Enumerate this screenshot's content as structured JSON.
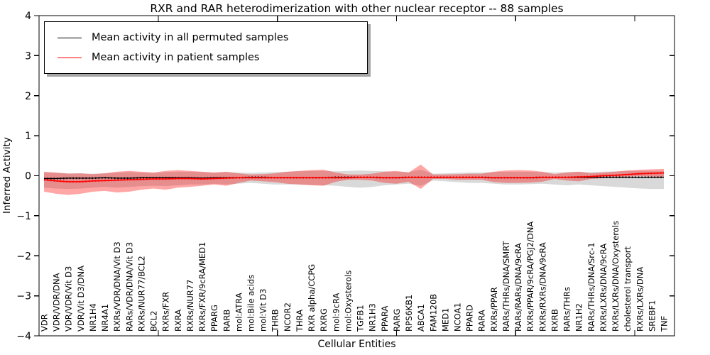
{
  "figure": {
    "title": "RXR and RAR heterodimerization with other nuclear receptor -- 88 samples",
    "background": "#ffffff"
  },
  "axes": {
    "ylabel": "Inferred Activity",
    "xlabel": "Cellular Entities",
    "ytick_labels": [
      "4",
      "3",
      "2",
      "1",
      "0",
      "−1",
      "−2",
      "−3",
      "−4"
    ],
    "ytick_values": [
      4,
      3,
      2,
      1,
      0,
      -1,
      -2,
      -3,
      -4
    ]
  },
  "legend": {
    "items": [
      {
        "label": "Mean activity in all permuted samples",
        "color": "#000000"
      },
      {
        "label": "Mean activity in patient samples",
        "color": "#ff0000"
      }
    ]
  },
  "chart_data": {
    "type": "line",
    "title": "RXR and RAR heterodimerization with other nuclear receptor -- 88 samples",
    "xlabel": "Cellular Entities",
    "ylabel": "Inferred Activity",
    "ylim": [
      -4,
      4
    ],
    "grid": false,
    "legend_position": "upper left",
    "categories": [
      "VDR",
      "VDR/VDR/DNA",
      "VDR/VDR/Vit D3",
      "VDR/Vit D3/DNA",
      "NR1H4",
      "NR4A1",
      "RXRs/VDR/DNA/Vit D3",
      "RARs/VDR/DNA/Vit D3",
      "RXRs/NUR77/BCL2",
      "BCL2",
      "RXRs/FXR",
      "RXRA",
      "RXRs/NUR77",
      "RXRs/FXR/9cRA/MED1",
      "PPARG",
      "RARB",
      "mol:ATRA",
      "mol:Bile acids",
      "mol:Vit D3",
      "THRB",
      "NCOR2",
      "THRA",
      "RXR alpha/CCPG",
      "RXRG",
      "mol:9cRA",
      "mol:Oxysterols",
      "TGFB1",
      "NR1H3",
      "PPARA",
      "RARG",
      "RPS6KB1",
      "ABCA1",
      "FAM120B",
      "MED1",
      "NCOA1",
      "PPARD",
      "RARA",
      "RXRs/PPAR",
      "RARs/THRs/DNA/SMRT",
      "RARs/RARs/DNA/9cRA",
      "RXRs/PPAR/9cRA/PGJ2/DNA",
      "RXRs/RXRs/DNA/9cRA",
      "RXRB",
      "RARs/THRs",
      "NR1H2",
      "RARs/THRs/DNA/Src-1",
      "RXRs/LXRs/DNA/9cRA",
      "RXRs/LXRs/DNA/Oxysterols",
      "cholesterol transport",
      "RXRs/LXRs/DNA",
      "SREBF1",
      "TNF"
    ],
    "xtick_index_positions": [
      9.4,
      19.2,
      29.0,
      38.8,
      48.6
    ],
    "series": [
      {
        "name": "Mean activity in all permuted samples",
        "color": "#000000",
        "band_color": "rgba(0,0,0,0.15)",
        "values": [
          -0.07,
          -0.07,
          -0.06,
          -0.06,
          -0.06,
          -0.05,
          -0.06,
          -0.06,
          -0.05,
          -0.05,
          -0.05,
          -0.05,
          -0.05,
          -0.06,
          -0.05,
          -0.05,
          -0.05,
          -0.04,
          -0.04,
          -0.05,
          -0.05,
          -0.05,
          -0.05,
          -0.05,
          -0.04,
          -0.04,
          -0.04,
          -0.04,
          -0.05,
          -0.05,
          -0.04,
          -0.04,
          -0.04,
          -0.04,
          -0.04,
          -0.04,
          -0.04,
          -0.05,
          -0.05,
          -0.05,
          -0.05,
          -0.04,
          -0.04,
          -0.04,
          -0.04,
          -0.04,
          -0.04,
          -0.04,
          -0.04,
          -0.04,
          -0.04,
          -0.04
        ],
        "band_upper": [
          0.08,
          0.07,
          0.06,
          0.06,
          0.05,
          0.06,
          0.08,
          0.09,
          0.08,
          0.07,
          0.09,
          0.1,
          0.1,
          0.09,
          0.08,
          0.09,
          0.08,
          0.07,
          0.08,
          0.09,
          0.1,
          0.11,
          0.12,
          0.12,
          0.11,
          0.12,
          0.13,
          0.12,
          0.11,
          0.1,
          0.09,
          0.15,
          0.05,
          0.06,
          0.07,
          0.08,
          0.08,
          0.09,
          0.1,
          0.1,
          0.1,
          0.09,
          0.08,
          0.09,
          0.1,
          0.09,
          0.1,
          0.11,
          0.12,
          0.12,
          0.12,
          0.12
        ],
        "band_lower": [
          -0.3,
          -0.32,
          -0.33,
          -0.32,
          -0.3,
          -0.28,
          -0.3,
          -0.28,
          -0.26,
          -0.25,
          -0.26,
          -0.24,
          -0.22,
          -0.22,
          -0.2,
          -0.22,
          -0.2,
          -0.18,
          -0.2,
          -0.22,
          -0.22,
          -0.22,
          -0.23,
          -0.24,
          -0.25,
          -0.28,
          -0.3,
          -0.28,
          -0.24,
          -0.22,
          -0.2,
          -0.25,
          -0.12,
          -0.14,
          -0.16,
          -0.18,
          -0.18,
          -0.2,
          -0.22,
          -0.22,
          -0.21,
          -0.2,
          -0.22,
          -0.24,
          -0.22,
          -0.24,
          -0.26,
          -0.28,
          -0.3,
          -0.32,
          -0.33,
          -0.33
        ]
      },
      {
        "name": "Mean activity in patient samples",
        "color": "#ff0000",
        "band_color": "rgba(255,0,0,0.35)",
        "values": [
          -0.1,
          -0.13,
          -0.15,
          -0.15,
          -0.13,
          -0.12,
          -0.11,
          -0.1,
          -0.09,
          -0.08,
          -0.08,
          -0.07,
          -0.07,
          -0.08,
          -0.07,
          -0.06,
          -0.05,
          -0.05,
          -0.05,
          -0.05,
          -0.05,
          -0.05,
          -0.05,
          -0.05,
          -0.05,
          -0.05,
          -0.04,
          -0.04,
          -0.05,
          -0.05,
          -0.04,
          -0.04,
          -0.04,
          -0.04,
          -0.04,
          -0.04,
          -0.04,
          -0.05,
          -0.05,
          -0.05,
          -0.05,
          -0.04,
          -0.04,
          -0.04,
          -0.03,
          -0.02,
          0.0,
          0.01,
          0.03,
          0.05,
          0.06,
          0.07
        ],
        "band_upper": [
          0.1,
          0.08,
          0.05,
          0.06,
          0.04,
          0.06,
          0.1,
          0.12,
          0.1,
          0.08,
          0.12,
          0.14,
          0.12,
          0.1,
          0.08,
          0.1,
          0.06,
          0.03,
          0.04,
          0.06,
          0.1,
          0.12,
          0.14,
          0.15,
          0.08,
          0.03,
          0.03,
          0.05,
          0.1,
          0.12,
          0.08,
          0.28,
          0.03,
          0.03,
          0.04,
          0.05,
          0.05,
          0.1,
          0.13,
          0.14,
          0.13,
          0.1,
          0.04,
          0.08,
          0.1,
          0.06,
          0.08,
          0.1,
          0.13,
          0.15,
          0.16,
          0.17
        ],
        "band_lower": [
          -0.4,
          -0.45,
          -0.48,
          -0.45,
          -0.4,
          -0.38,
          -0.42,
          -0.4,
          -0.35,
          -0.32,
          -0.35,
          -0.3,
          -0.28,
          -0.25,
          -0.22,
          -0.25,
          -0.18,
          -0.12,
          -0.14,
          -0.16,
          -0.2,
          -0.22,
          -0.24,
          -0.25,
          -0.15,
          -0.1,
          -0.1,
          -0.12,
          -0.18,
          -0.2,
          -0.15,
          -0.33,
          -0.08,
          -0.08,
          -0.1,
          -0.1,
          -0.1,
          -0.16,
          -0.18,
          -0.18,
          -0.17,
          -0.15,
          -0.08,
          -0.12,
          -0.14,
          -0.08,
          -0.06,
          -0.04,
          -0.02,
          -0.01,
          -0.02,
          -0.03
        ]
      }
    ]
  }
}
